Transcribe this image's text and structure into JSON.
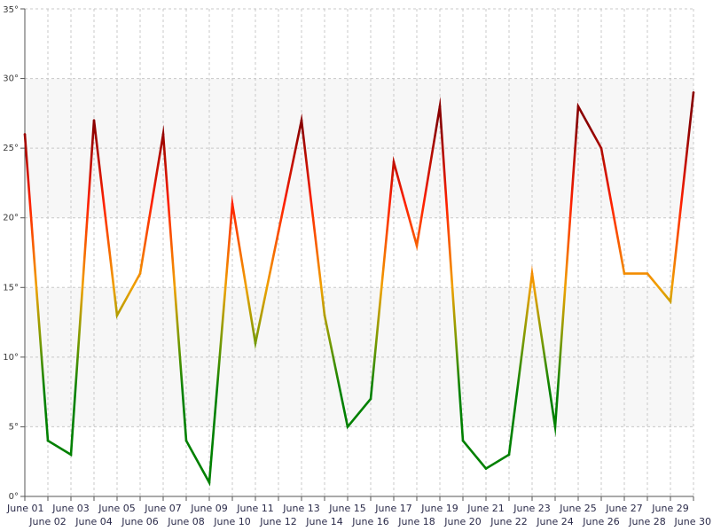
{
  "chart_data": {
    "type": "line",
    "title": "",
    "xlabel": "",
    "ylabel": "",
    "y_unit_suffix": "°",
    "ylim": [
      0,
      35
    ],
    "yticks": [
      0,
      5,
      10,
      15,
      20,
      25,
      30,
      35
    ],
    "grid": true,
    "grid_style": "dashed",
    "bands": [
      {
        "from": 5,
        "to": 15,
        "color": "#f7f7f7"
      },
      {
        "from": 20,
        "to": 30,
        "color": "#f7f7f7"
      }
    ],
    "colors": {
      "low": "#008000",
      "mid_low": "#7a9a00",
      "mid": "#f0a000",
      "mid_high": "#ff2000",
      "high": "#8b0000"
    },
    "categories": [
      "June 01",
      "June 02",
      "June 03",
      "June 04",
      "June 05",
      "June 06",
      "June 07",
      "June 08",
      "June 09",
      "June 10",
      "June 11",
      "June 12",
      "June 13",
      "June 14",
      "June 15",
      "June 16",
      "June 17",
      "June 18",
      "June 19",
      "June 20",
      "June 21",
      "June 22",
      "June 23",
      "June 24",
      "June 25",
      "June 26",
      "June 27",
      "June 28",
      "June 29",
      "June 30"
    ],
    "series": [
      {
        "values": [
          26,
          4,
          3,
          27,
          13,
          16,
          26,
          4,
          1,
          21,
          11,
          19,
          27,
          13,
          5,
          7,
          24,
          18,
          28,
          4,
          2,
          3,
          16,
          5,
          28,
          25,
          16,
          16,
          14,
          29
        ]
      }
    ]
  }
}
